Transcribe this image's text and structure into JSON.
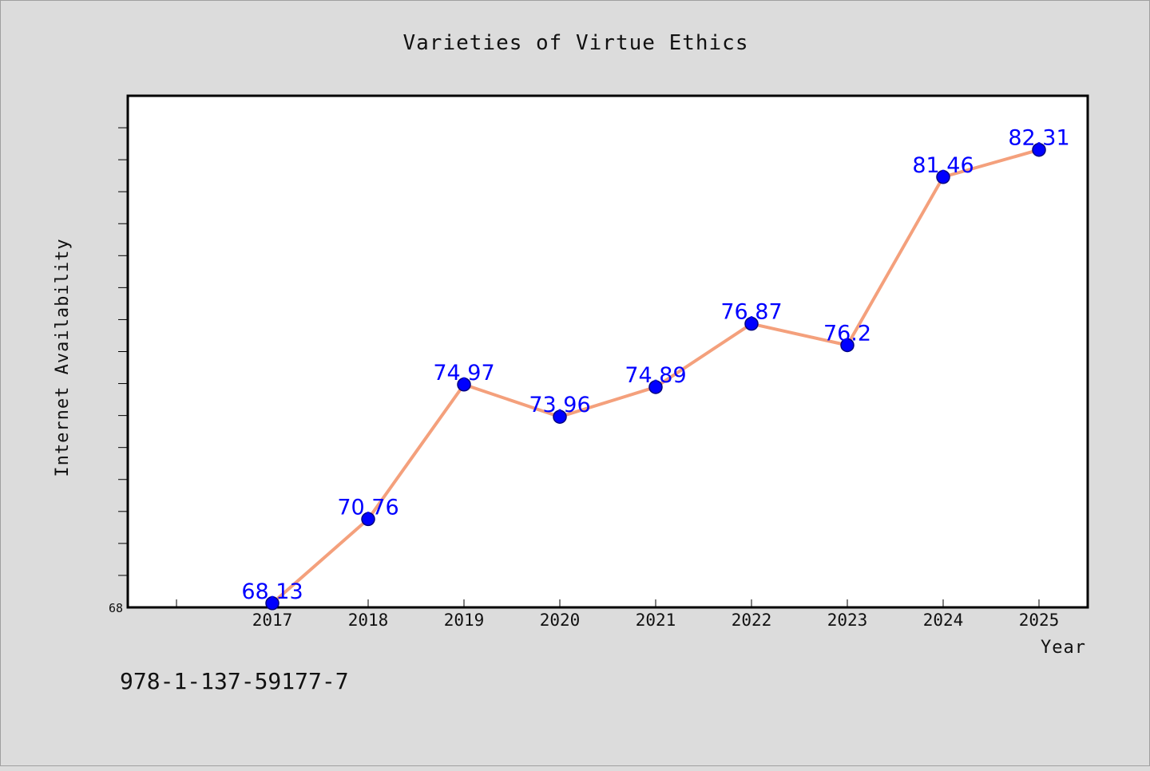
{
  "chart_data": {
    "type": "line",
    "title": "Varieties of Virtue Ethics",
    "xlabel": "Year",
    "ylabel": "Internet Availability",
    "categories": [
      "2017",
      "2018",
      "2019",
      "2020",
      "2021",
      "2022",
      "2023",
      "2024",
      "2025"
    ],
    "series": [
      {
        "values": [
          68.13,
          70.76,
          74.97,
          73.96,
          74.89,
          76.87,
          76.2,
          81.46,
          82.31
        ],
        "labels": [
          "68.13",
          "70.76",
          "74.97",
          "73.96",
          "74.89",
          "76.87",
          "76.2",
          "81.46",
          "82.31"
        ],
        "color": "#f4a07c",
        "marker_color": "#0000ff"
      }
    ],
    "ylim": [
      68,
      84
    ],
    "y_tick_label": "68",
    "grid": false,
    "legend": "none",
    "annotation": "978-1-137-59177-7",
    "colors": {
      "background": "#dcdcdc",
      "plot_background": "#ffffff",
      "line": "#f4a07c",
      "marker": "#0000ff",
      "data_label": "#0000ff"
    }
  }
}
